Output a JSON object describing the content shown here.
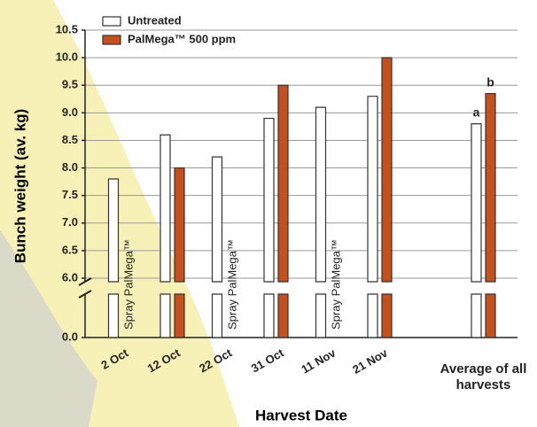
{
  "chart_data": {
    "type": "bar",
    "y_label": "Bunch weight (av. kg)",
    "x_label": "Harvest Date",
    "categories": [
      "2 Oct",
      "12 Oct",
      "22 Oct",
      "31 Oct",
      "11 Nov",
      "21 Nov",
      "Average of all harvests"
    ],
    "series": [
      {
        "name": "Untreated",
        "color": "#ffffff",
        "values": [
          7.8,
          8.6,
          8.2,
          8.9,
          9.1,
          9.3,
          8.8
        ],
        "letters": [
          null,
          null,
          null,
          null,
          null,
          null,
          "a"
        ]
      },
      {
        "name": "PalMega™ 500 ppm",
        "color": "#c4501e",
        "values": [
          null,
          8.0,
          null,
          9.5,
          null,
          10.0,
          9.35
        ],
        "letters": [
          null,
          null,
          null,
          null,
          null,
          null,
          "b"
        ]
      }
    ],
    "spray_labels": [
      "Spray PalMega™",
      null,
      "Spray PalMega™",
      null,
      "Spray PalMega™",
      null,
      null
    ],
    "ylim": [
      0,
      10.5
    ],
    "yticks": [
      {
        "value": 0,
        "label": "0.0"
      },
      {
        "value": 6,
        "label": "6.0"
      },
      {
        "value": 6.5,
        "label": "6.5"
      },
      {
        "value": 7,
        "label": "7.0"
      },
      {
        "value": 7.5,
        "label": "7.5"
      },
      {
        "value": 8,
        "label": "8.0"
      },
      {
        "value": 8.5,
        "label": "8.5"
      },
      {
        "value": 9,
        "label": "9.0"
      },
      {
        "value": 9.5,
        "label": "9.5"
      },
      {
        "value": 10,
        "label": "10.0"
      },
      {
        "value": 10.5,
        "label": "10.5"
      }
    ],
    "broken_axis": true,
    "grid": true
  }
}
